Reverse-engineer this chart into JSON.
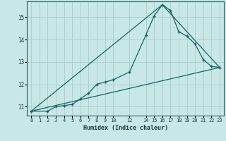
{
  "xlabel": "Humidex (Indice chaleur)",
  "background_color": "#c8e8e8",
  "grid_color": "#b0d0d0",
  "line_color": "#1a6060",
  "xlim": [
    -0.5,
    23.5
  ],
  "ylim": [
    10.6,
    15.7
  ],
  "xticks": [
    0,
    1,
    2,
    3,
    4,
    5,
    6,
    7,
    8,
    9,
    10,
    12,
    14,
    15,
    16,
    17,
    18,
    19,
    20,
    21,
    22,
    23
  ],
  "yticks": [
    11,
    12,
    13,
    14,
    15
  ],
  "line1_x": [
    0,
    2,
    3,
    4,
    5,
    6,
    7,
    8,
    9,
    10,
    12,
    14,
    15,
    16,
    17,
    18,
    19,
    20,
    21,
    22,
    23
  ],
  "line1_y": [
    10.8,
    10.8,
    11.0,
    11.05,
    11.1,
    11.35,
    11.6,
    12.0,
    12.1,
    12.2,
    12.55,
    14.2,
    15.05,
    15.55,
    15.3,
    14.35,
    14.15,
    13.8,
    13.1,
    12.8,
    12.75
  ],
  "line2_x": [
    0,
    23
  ],
  "line2_y": [
    10.8,
    12.75
  ],
  "line3_x": [
    0,
    16,
    23
  ],
  "line3_y": [
    10.8,
    15.55,
    12.75
  ]
}
